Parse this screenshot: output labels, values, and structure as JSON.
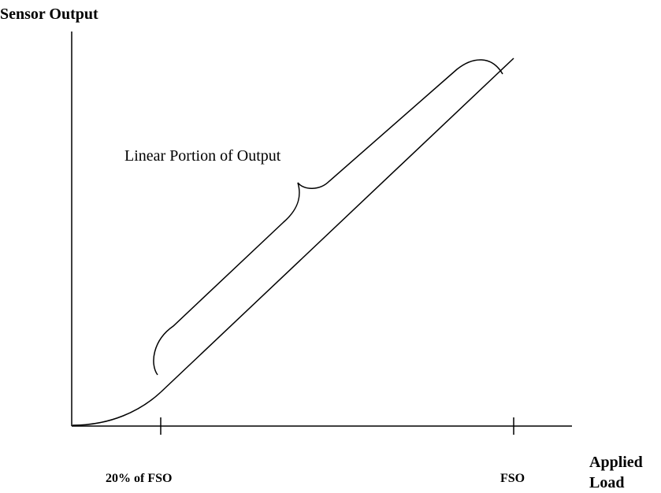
{
  "axes": {
    "y_label": "Sensor Output",
    "x_label_line1": "Applied",
    "x_label_line2": "Load"
  },
  "ticks": {
    "low": "20% of FSO",
    "high": "FSO"
  },
  "annotation": {
    "text": "Linear Portion of Output"
  },
  "colors": {
    "ink": "#000000",
    "background": "#ffffff"
  }
}
